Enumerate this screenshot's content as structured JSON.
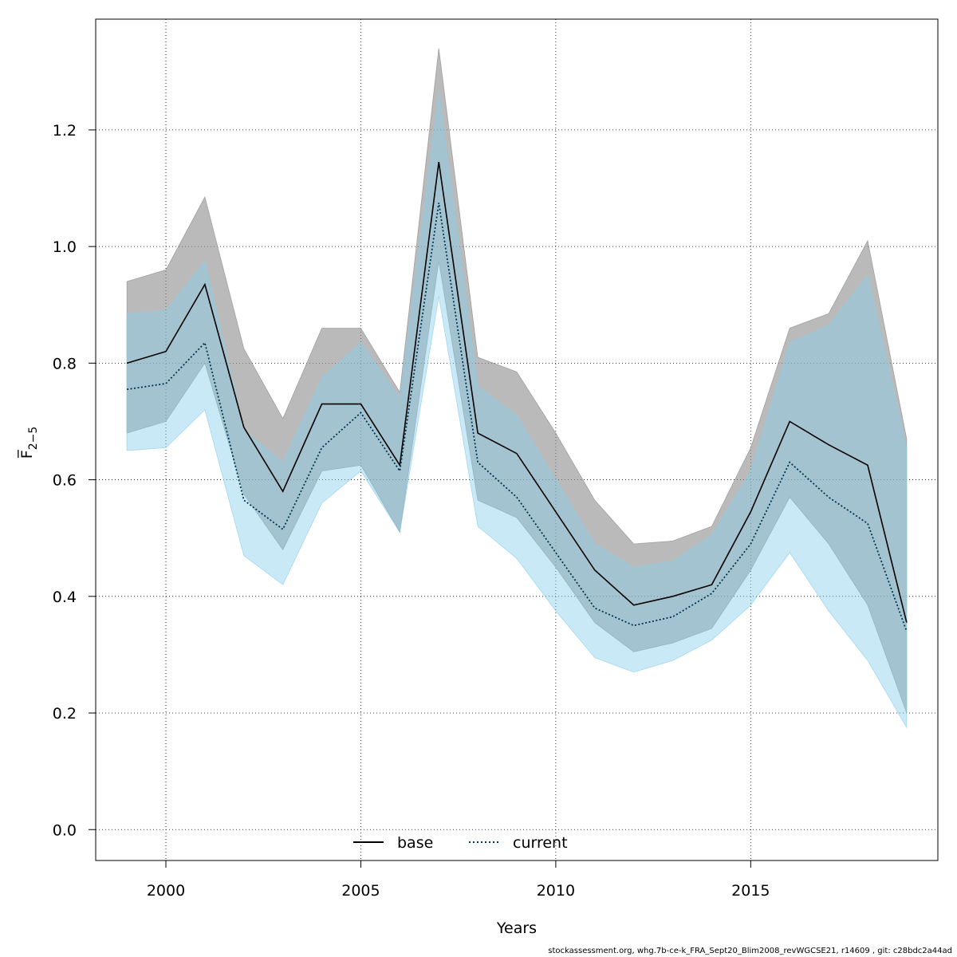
{
  "chart_data": {
    "type": "line",
    "xlabel": "Years",
    "ylabel": "F̅",
    "ylabel_subscript": "2−5",
    "xlim": [
      1998.2,
      2019.8
    ],
    "ylim": [
      -0.053,
      1.39
    ],
    "x_ticks": [
      2000,
      2005,
      2010,
      2015
    ],
    "y_ticks": [
      0.0,
      0.2,
      0.4,
      0.6,
      0.8,
      1.0,
      1.2
    ],
    "y_tick_labels": [
      "0.0",
      "0.2",
      "0.4",
      "0.6",
      "0.8",
      "1.0",
      "1.2"
    ],
    "grid": true,
    "legend_position": "bottom-center",
    "x": [
      1999,
      2000,
      2001,
      2002,
      2003,
      2004,
      2005,
      2006,
      2007,
      2008,
      2009,
      2010,
      2011,
      2012,
      2013,
      2014,
      2015,
      2016,
      2017,
      2018,
      2019
    ],
    "series": [
      {
        "name": "base",
        "line_style": "solid",
        "color": "#000000",
        "band_color": "#8c8c8c",
        "values": [
          0.8,
          0.82,
          0.935,
          0.69,
          0.58,
          0.73,
          0.73,
          0.625,
          1.145,
          0.68,
          0.645,
          0.545,
          0.445,
          0.385,
          0.4,
          0.42,
          0.545,
          0.7,
          0.66,
          0.625,
          0.355
        ],
        "upper": [
          0.94,
          0.96,
          1.085,
          0.825,
          0.705,
          0.86,
          0.86,
          0.75,
          1.34,
          0.81,
          0.785,
          0.68,
          0.565,
          0.49,
          0.495,
          0.52,
          0.655,
          0.86,
          0.885,
          1.01,
          0.67
        ],
        "lower": [
          0.68,
          0.7,
          0.8,
          0.575,
          0.48,
          0.615,
          0.625,
          0.51,
          0.975,
          0.565,
          0.535,
          0.45,
          0.355,
          0.305,
          0.32,
          0.345,
          0.445,
          0.57,
          0.49,
          0.385,
          0.2
        ]
      },
      {
        "name": "current",
        "line_style": "dotted",
        "color": "#00344f",
        "band_color": "#87ceeb",
        "values": [
          0.755,
          0.765,
          0.835,
          0.565,
          0.515,
          0.655,
          0.715,
          0.615,
          1.075,
          0.63,
          0.57,
          0.475,
          0.38,
          0.35,
          0.365,
          0.405,
          0.49,
          0.63,
          0.57,
          0.525,
          0.34
        ],
        "upper": [
          0.885,
          0.89,
          0.975,
          0.685,
          0.63,
          0.775,
          0.835,
          0.74,
          1.265,
          0.76,
          0.71,
          0.6,
          0.49,
          0.45,
          0.46,
          0.505,
          0.615,
          0.835,
          0.865,
          0.95,
          0.655
        ],
        "lower": [
          0.65,
          0.655,
          0.72,
          0.47,
          0.42,
          0.56,
          0.615,
          0.51,
          0.915,
          0.52,
          0.465,
          0.375,
          0.295,
          0.27,
          0.29,
          0.325,
          0.385,
          0.475,
          0.375,
          0.29,
          0.175
        ]
      }
    ]
  },
  "footer_text": "stockassessment.org, whg.7b-ce-k_FRA_Sept20_Blim2008_revWGCSE21, r14609 , git: c28bdc2a44ad"
}
